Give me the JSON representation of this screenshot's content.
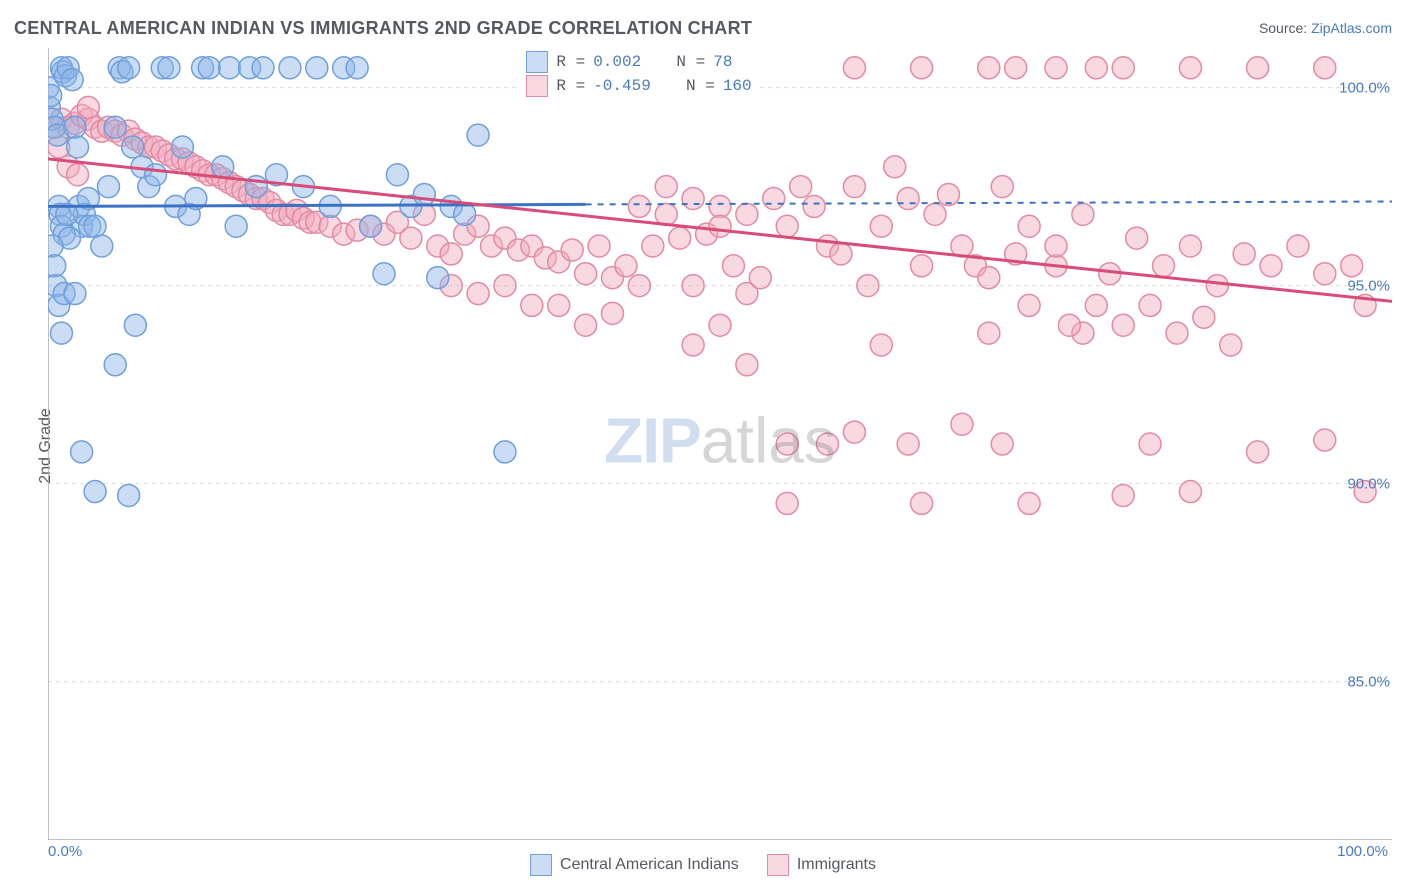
{
  "header": {
    "title": "CENTRAL AMERICAN INDIAN VS IMMIGRANTS 2ND GRADE CORRELATION CHART",
    "source_prefix": "Source: ",
    "source_name": "ZipAtlas.com"
  },
  "axes": {
    "ylabel": "2nd Grade",
    "xmin": 0,
    "xmax": 100,
    "ymin": 81,
    "ymax": 101,
    "x_ticks": [
      0,
      8.3,
      16.6,
      25,
      33.3,
      41.6,
      50,
      58.3,
      66.6,
      75,
      83.3,
      91.6,
      100
    ],
    "x_tick_labels": {
      "left": "0.0%",
      "right": "100.0%"
    },
    "y_gridlines": [
      85,
      90,
      95,
      100
    ],
    "y_tick_labels": [
      "85.0%",
      "90.0%",
      "95.0%",
      "100.0%"
    ]
  },
  "colors": {
    "grid": "#d9dde1",
    "axis": "#a8aeb5",
    "text": "#555a60",
    "value": "#4a7bbd",
    "blue_stroke": "#6fa0dd",
    "blue_fill": "rgba(140,180,230,0.45)",
    "blue_line": "#3b73c4",
    "pink_stroke": "#e38aa4",
    "pink_fill": "rgba(240,170,190,0.45)",
    "pink_line": "#d94b78",
    "bg": "#ffffff"
  },
  "series": [
    {
      "id": "blue",
      "label": "Central American Indians",
      "R": "0.002",
      "N": "78",
      "marker_radius": 11,
      "trend": {
        "y_start": 97.0,
        "y_end": 97.05,
        "x_start": 0,
        "x_end": 40,
        "dashed_to": 100
      },
      "points": [
        [
          0.0,
          100.0
        ],
        [
          0.1,
          99.5
        ],
        [
          0.2,
          99.8
        ],
        [
          0.3,
          99.2
        ],
        [
          0.5,
          99.0
        ],
        [
          0.7,
          98.8
        ],
        [
          1.0,
          100.5
        ],
        [
          1.1,
          100.4
        ],
        [
          1.3,
          100.3
        ],
        [
          1.5,
          100.5
        ],
        [
          1.8,
          100.2
        ],
        [
          2.0,
          99.0
        ],
        [
          2.2,
          98.5
        ],
        [
          2.3,
          97.0
        ],
        [
          2.5,
          96.5
        ],
        [
          2.7,
          96.8
        ],
        [
          3.0,
          97.2
        ],
        [
          3.1,
          96.5
        ],
        [
          0.8,
          97.0
        ],
        [
          0.9,
          96.8
        ],
        [
          1.0,
          96.5
        ],
        [
          1.2,
          96.3
        ],
        [
          1.4,
          96.8
        ],
        [
          1.6,
          96.2
        ],
        [
          0.3,
          96.0
        ],
        [
          0.5,
          95.5
        ],
        [
          0.6,
          95.0
        ],
        [
          0.8,
          94.5
        ],
        [
          1.0,
          93.8
        ],
        [
          1.2,
          94.8
        ],
        [
          2.0,
          94.8
        ],
        [
          3.5,
          96.5
        ],
        [
          4.0,
          96.0
        ],
        [
          4.5,
          97.5
        ],
        [
          5.0,
          99.0
        ],
        [
          5.3,
          100.5
        ],
        [
          5.5,
          100.4
        ],
        [
          6.0,
          100.5
        ],
        [
          6.3,
          98.5
        ],
        [
          7.0,
          98.0
        ],
        [
          7.5,
          97.5
        ],
        [
          8.0,
          97.8
        ],
        [
          8.5,
          100.5
        ],
        [
          9.0,
          100.5
        ],
        [
          9.5,
          97.0
        ],
        [
          10.0,
          98.5
        ],
        [
          10.5,
          96.8
        ],
        [
          11.0,
          97.2
        ],
        [
          11.5,
          100.5
        ],
        [
          12.0,
          100.5
        ],
        [
          13.0,
          98.0
        ],
        [
          13.5,
          100.5
        ],
        [
          14.0,
          96.5
        ],
        [
          15.0,
          100.5
        ],
        [
          15.5,
          97.5
        ],
        [
          16.0,
          100.5
        ],
        [
          17.0,
          97.8
        ],
        [
          18.0,
          100.5
        ],
        [
          19.0,
          97.5
        ],
        [
          20.0,
          100.5
        ],
        [
          21.0,
          97.0
        ],
        [
          22.0,
          100.5
        ],
        [
          23.0,
          100.5
        ],
        [
          24.0,
          96.5
        ],
        [
          25.0,
          95.3
        ],
        [
          26.0,
          97.8
        ],
        [
          27.0,
          97.0
        ],
        [
          28.0,
          97.3
        ],
        [
          29.0,
          95.2
        ],
        [
          30.0,
          97.0
        ],
        [
          31.0,
          96.8
        ],
        [
          32.0,
          98.8
        ],
        [
          34.0,
          90.8
        ],
        [
          2.5,
          90.8
        ],
        [
          3.5,
          89.8
        ],
        [
          5.0,
          93.0
        ],
        [
          6.5,
          94.0
        ],
        [
          6.0,
          89.7
        ]
      ]
    },
    {
      "id": "pink",
      "label": "Immigrants",
      "R": "-0.459",
      "N": "160",
      "marker_radius": 11,
      "trend": {
        "y_start": 98.2,
        "y_end": 94.6,
        "x_start": 0,
        "x_end": 100
      },
      "points": [
        [
          0.5,
          99.0
        ],
        [
          1.0,
          99.2
        ],
        [
          1.5,
          99.0
        ],
        [
          2.0,
          99.1
        ],
        [
          2.5,
          99.3
        ],
        [
          3.0,
          99.2
        ],
        [
          3.5,
          99.0
        ],
        [
          4.0,
          98.9
        ],
        [
          4.5,
          99.0
        ],
        [
          5.0,
          98.9
        ],
        [
          5.5,
          98.8
        ],
        [
          6.0,
          98.9
        ],
        [
          6.5,
          98.7
        ],
        [
          7.0,
          98.6
        ],
        [
          7.5,
          98.5
        ],
        [
          8.0,
          98.5
        ],
        [
          8.5,
          98.4
        ],
        [
          9.0,
          98.3
        ],
        [
          9.5,
          98.2
        ],
        [
          10.0,
          98.2
        ],
        [
          10.5,
          98.1
        ],
        [
          11.0,
          98.0
        ],
        [
          11.5,
          97.9
        ],
        [
          12.0,
          97.8
        ],
        [
          12.5,
          97.8
        ],
        [
          13.0,
          97.7
        ],
        [
          13.5,
          97.6
        ],
        [
          14.0,
          97.5
        ],
        [
          14.5,
          97.4
        ],
        [
          15.0,
          97.3
        ],
        [
          15.5,
          97.2
        ],
        [
          16.0,
          97.2
        ],
        [
          16.5,
          97.1
        ],
        [
          17.0,
          96.9
        ],
        [
          17.5,
          96.8
        ],
        [
          18.0,
          96.8
        ],
        [
          18.5,
          96.9
        ],
        [
          19.0,
          96.7
        ],
        [
          19.5,
          96.6
        ],
        [
          20.0,
          96.6
        ],
        [
          21.0,
          96.5
        ],
        [
          22.0,
          96.3
        ],
        [
          23.0,
          96.4
        ],
        [
          24.0,
          96.5
        ],
        [
          25.0,
          96.3
        ],
        [
          26.0,
          96.6
        ],
        [
          27.0,
          96.2
        ],
        [
          28.0,
          96.8
        ],
        [
          29.0,
          96.0
        ],
        [
          30.0,
          95.8
        ],
        [
          31.0,
          96.3
        ],
        [
          32.0,
          96.5
        ],
        [
          33.0,
          96.0
        ],
        [
          34.0,
          96.2
        ],
        [
          35.0,
          95.9
        ],
        [
          36.0,
          96.0
        ],
        [
          37.0,
          95.7
        ],
        [
          38.0,
          95.6
        ],
        [
          39.0,
          95.9
        ],
        [
          40.0,
          95.3
        ],
        [
          41.0,
          96.0
        ],
        [
          42.0,
          95.2
        ],
        [
          43.0,
          95.5
        ],
        [
          44.0,
          95.0
        ],
        [
          45.0,
          96.0
        ],
        [
          46.0,
          96.8
        ],
        [
          47.0,
          96.2
        ],
        [
          48.0,
          95.0
        ],
        [
          49.0,
          96.3
        ],
        [
          50.0,
          97.0
        ],
        [
          51.0,
          95.5
        ],
        [
          52.0,
          94.8
        ],
        [
          53.0,
          95.2
        ],
        [
          54.0,
          97.2
        ],
        [
          55.0,
          96.5
        ],
        [
          56.0,
          97.5
        ],
        [
          57.0,
          97.0
        ],
        [
          58.0,
          96.0
        ],
        [
          59.0,
          95.8
        ],
        [
          60.0,
          97.5
        ],
        [
          61.0,
          95.0
        ],
        [
          62.0,
          96.5
        ],
        [
          63.0,
          98.0
        ],
        [
          64.0,
          97.2
        ],
        [
          65.0,
          95.5
        ],
        [
          66.0,
          96.8
        ],
        [
          67.0,
          97.3
        ],
        [
          68.0,
          96.0
        ],
        [
          69.0,
          95.5
        ],
        [
          70.0,
          95.2
        ],
        [
          71.0,
          97.5
        ],
        [
          72.0,
          95.8
        ],
        [
          60.0,
          100.5
        ],
        [
          65.0,
          100.5
        ],
        [
          70.0,
          100.5
        ],
        [
          72.0,
          100.5
        ],
        [
          75.0,
          100.5
        ],
        [
          78.0,
          100.5
        ],
        [
          80.0,
          100.5
        ],
        [
          85.0,
          100.5
        ],
        [
          90.0,
          100.5
        ],
        [
          95.0,
          100.5
        ],
        [
          55.0,
          91.0
        ],
        [
          60.0,
          91.3
        ],
        [
          62.0,
          93.5
        ],
        [
          64.0,
          91.0
        ],
        [
          70.0,
          93.8
        ],
        [
          73.0,
          94.5
        ],
        [
          75.0,
          95.5
        ],
        [
          77.0,
          93.8
        ],
        [
          80.0,
          89.7
        ],
        [
          82.0,
          91.0
        ],
        [
          85.0,
          89.8
        ],
        [
          90.0,
          90.8
        ],
        [
          95.0,
          91.1
        ],
        [
          55.0,
          89.5
        ],
        [
          48.0,
          93.5
        ],
        [
          50.0,
          94.0
        ],
        [
          52.0,
          93.0
        ],
        [
          38.0,
          94.5
        ],
        [
          40.0,
          94.0
        ],
        [
          42.0,
          94.3
        ],
        [
          30.0,
          95.0
        ],
        [
          32.0,
          94.8
        ],
        [
          34.0,
          95.0
        ],
        [
          36.0,
          94.5
        ],
        [
          73.0,
          96.5
        ],
        [
          75.0,
          96.0
        ],
        [
          77.0,
          96.8
        ],
        [
          79.0,
          95.3
        ],
        [
          81.0,
          96.2
        ],
        [
          83.0,
          95.5
        ],
        [
          85.0,
          96.0
        ],
        [
          87.0,
          95.0
        ],
        [
          89.0,
          95.8
        ],
        [
          91.0,
          95.5
        ],
        [
          93.0,
          96.0
        ],
        [
          95.0,
          95.3
        ],
        [
          97.0,
          95.5
        ],
        [
          98.0,
          94.5
        ],
        [
          0.8,
          98.5
        ],
        [
          1.5,
          98.0
        ],
        [
          2.2,
          97.8
        ],
        [
          3.0,
          99.5
        ],
        [
          73.0,
          89.5
        ],
        [
          46.0,
          97.5
        ],
        [
          44.0,
          97.0
        ],
        [
          48.0,
          97.2
        ],
        [
          50.0,
          96.5
        ],
        [
          52.0,
          96.8
        ],
        [
          65.0,
          89.5
        ],
        [
          58.0,
          91.0
        ],
        [
          68.0,
          91.5
        ],
        [
          71.0,
          91.0
        ],
        [
          98.0,
          89.8
        ],
        [
          88.0,
          93.5
        ],
        [
          76.0,
          94.0
        ],
        [
          78.0,
          94.5
        ],
        [
          80.0,
          94.0
        ],
        [
          82.0,
          94.5
        ],
        [
          84.0,
          93.8
        ],
        [
          86.0,
          94.2
        ]
      ]
    }
  ],
  "stat_legend": {
    "rows": [
      {
        "series": "blue",
        "text_r": "R =",
        "r": "0.002",
        "text_n": "N =",
        "n": "78"
      },
      {
        "series": "pink",
        "text_r": "R =",
        "r": "-0.459",
        "text_n": "N =",
        "n": "160"
      }
    ]
  },
  "bottom_legend": [
    {
      "series": "blue",
      "label": "Central American Indians"
    },
    {
      "series": "pink",
      "label": "Immigrants"
    }
  ],
  "watermark": {
    "z": "ZIP",
    "a": "atlas"
  }
}
